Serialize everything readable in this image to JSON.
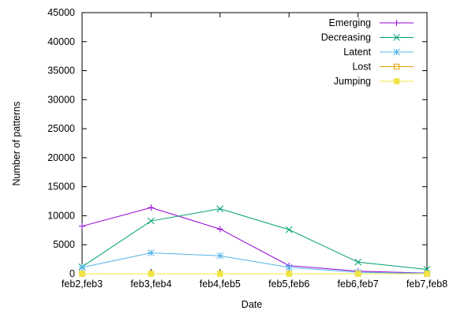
{
  "chart_data": {
    "type": "line",
    "title": "",
    "xlabel": "Date",
    "ylabel": "Number of patterns",
    "categories": [
      "feb2,feb3",
      "feb3,feb4",
      "feb4,feb5",
      "feb5,feb6",
      "feb6,feb7",
      "feb7,feb8"
    ],
    "ylim": [
      0,
      45000
    ],
    "yticks": [
      "0",
      "5000",
      "10000",
      "15000",
      "20000",
      "25000",
      "30000",
      "35000",
      "40000",
      "45000"
    ],
    "grid": false,
    "legend_position": "top-right",
    "series": [
      {
        "name": "Emerging",
        "color": "#9400d3",
        "marker": "plus",
        "values": [
          8200,
          11400,
          7700,
          1400,
          450,
          120
        ]
      },
      {
        "name": "Decreasing",
        "color": "#009e73",
        "marker": "cross",
        "values": [
          1200,
          9100,
          11200,
          7600,
          2000,
          750
        ]
      },
      {
        "name": "Latent",
        "color": "#56b4e9",
        "marker": "asterisk",
        "values": [
          1100,
          3600,
          3100,
          1100,
          250,
          80
        ]
      },
      {
        "name": "Lost",
        "color": "#e69f00",
        "marker": "open-square",
        "values": [
          0,
          0,
          0,
          0,
          0,
          0
        ]
      },
      {
        "name": "Jumping",
        "color": "#f0e442",
        "marker": "filled-square",
        "values": [
          0,
          0,
          0,
          0,
          0,
          0
        ]
      }
    ]
  }
}
